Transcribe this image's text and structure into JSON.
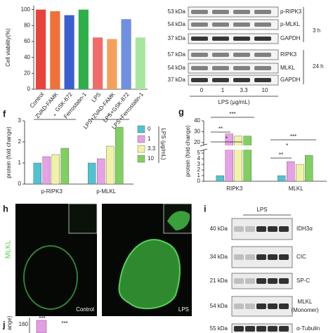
{
  "chart_data": [
    {
      "type": "bar",
      "ylabel": "Cell viability(%)",
      "categories": [
        "Control",
        "ZVAD-FAMK",
        "GSK-872",
        "Ferrostatin-1",
        "LPS",
        "LPS+ZVAD-FAMK",
        "LPS+GSK-872",
        "LPS+Ferrostatin-1"
      ],
      "values": [
        100,
        98,
        93,
        100,
        65,
        63,
        88,
        65
      ],
      "colors": [
        "#e8433a",
        "#f0703a",
        "#3b5fd0",
        "#2faf4a",
        "#f26b6b",
        "#f5a05a",
        "#6f8fe0",
        "#a8e6a0"
      ],
      "ylim": [
        0,
        105
      ],
      "yticks": [
        0,
        20,
        40,
        60,
        80,
        100
      ]
    },
    {
      "type": "bar",
      "panel": "f",
      "ylabel": "protein (fold change)",
      "legend_title": "LPS (μg/mL)",
      "categories": [
        "p-RIPK3",
        "p-MLKL"
      ],
      "series": [
        {
          "name": "0",
          "color": "#4fc3d0",
          "values": [
            1.0,
            1.0
          ]
        },
        {
          "name": "1",
          "color": "#e8a0e6",
          "values": [
            1.3,
            1.2
          ]
        },
        {
          "name": "3.3",
          "color": "#f2f2a6",
          "values": [
            1.4,
            1.8
          ]
        },
        {
          "name": "10",
          "color": "#80d060",
          "values": [
            1.7,
            2.7
          ]
        }
      ],
      "ylim": [
        0,
        3
      ],
      "yticks": [
        0,
        1,
        2,
        3
      ],
      "annotations": [
        "*",
        "*"
      ]
    },
    {
      "type": "bar",
      "panel": "g",
      "ylabel": "protein (fold change)",
      "categories": [
        "RIPK3",
        "MLKL"
      ],
      "series": [
        {
          "color": "#4fc3d0",
          "values": [
            1.0,
            1.0
          ]
        },
        {
          "color": "#e8a0e6",
          "values": [
            28,
            3.5
          ]
        },
        {
          "color": "#f2f2a6",
          "values": [
            26,
            3.0
          ]
        },
        {
          "color": "#80d060",
          "values": [
            26,
            4.6
          ]
        }
      ],
      "ylim": [
        0,
        40
      ],
      "axis_break": [
        5.5,
        18
      ],
      "yticks": [
        0,
        1,
        2,
        3,
        4,
        5,
        20,
        30,
        40
      ],
      "annotations": [
        "***",
        "**",
        "*",
        "***",
        "*",
        "**"
      ]
    }
  ],
  "blot_top": {
    "rows": [
      {
        "kda": "53 kDa",
        "label": "p-RIPK3"
      },
      {
        "kda": "54 kDa",
        "label": "p-MLKL"
      },
      {
        "kda": "37 kDa",
        "label": "GAPDH"
      },
      {
        "kda": "57 kDa",
        "label": "RIPK3"
      },
      {
        "kda": "54 kDa",
        "label": "MLKL"
      },
      {
        "kda": "37 kDa",
        "label": "GAPDH"
      }
    ],
    "times": [
      "3 h",
      "24 h"
    ],
    "lanes": [
      "0",
      "1",
      "3.3",
      "10"
    ],
    "xlabel": "LPS (μg/mL)"
  },
  "panel_h": {
    "label": "h",
    "stain": "MLKL",
    "captions": [
      "Control",
      "LPS"
    ]
  },
  "panel_i": {
    "label": "i",
    "group": "LPS",
    "rows": [
      {
        "kda": "40 kDa",
        "label": "IDH3α"
      },
      {
        "kda": "34 kDa",
        "label": "CIC"
      },
      {
        "kda": "21 kDa",
        "label": "SP-C"
      },
      {
        "kda": "54 kDa",
        "label": "MLKL",
        "sublabel": "(Monomer)"
      },
      {
        "kda": "55 kDa",
        "label": "α-Tubulin"
      }
    ]
  },
  "panel_j": {
    "label": "j",
    "ylabel": "ange)",
    "ytick": "160",
    "annotations": [
      "***",
      "***"
    ]
  },
  "letters": {
    "f": "f",
    "g": "g"
  }
}
